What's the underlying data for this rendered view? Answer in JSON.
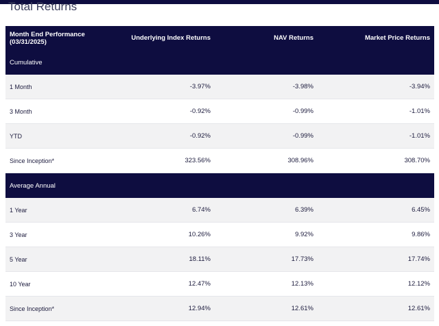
{
  "section_title": "Total Returns",
  "table": {
    "header": {
      "period_line1": "Month End Performance",
      "period_line2": "(03/31/2025)",
      "col_index": "Underlying Index Returns",
      "col_nav": "NAV Returns",
      "col_market": "Market Price Returns"
    },
    "groups": [
      {
        "label": "Cumulative",
        "rows": [
          {
            "label": "1 Month",
            "index": "-3.97%",
            "nav": "-3.98%",
            "market": "-3.94%"
          },
          {
            "label": "3 Month",
            "index": "-0.92%",
            "nav": "-0.99%",
            "market": "-1.01%"
          },
          {
            "label": "YTD",
            "index": "-0.92%",
            "nav": "-0.99%",
            "market": "-1.01%"
          },
          {
            "label": "Since Inception*",
            "index": "323.56%",
            "nav": "308.96%",
            "market": "308.70%"
          }
        ]
      },
      {
        "label": "Average Annual",
        "rows": [
          {
            "label": "1 Year",
            "index": "6.74%",
            "nav": "6.39%",
            "market": "6.45%"
          },
          {
            "label": "3 Year",
            "index": "10.26%",
            "nav": "9.92%",
            "market": "9.86%"
          },
          {
            "label": "5 Year",
            "index": "18.11%",
            "nav": "17.73%",
            "market": "17.74%"
          },
          {
            "label": "10 Year",
            "index": "12.47%",
            "nav": "12.13%",
            "market": "12.12%"
          },
          {
            "label": "Since Inception*",
            "index": "12.94%",
            "nav": "12.61%",
            "market": "12.61%"
          }
        ]
      }
    ]
  },
  "colors": {
    "navy": "#0e0d40",
    "row_shade": "#f2f2f3",
    "text": "#1c1b3d"
  }
}
